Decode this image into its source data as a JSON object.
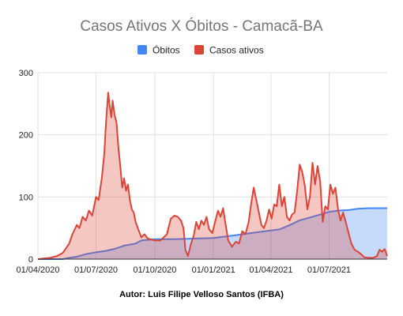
{
  "chart_data": {
    "type": "area",
    "title": "Casos Ativos X Óbitos - Camacã-BA",
    "footer": "Autor: Luis Filipe Velloso Santos (IFBA)",
    "xlabel": "",
    "ylabel": "",
    "ylim": [
      0,
      300
    ],
    "yticks": [
      0,
      100,
      200,
      300
    ],
    "xlim": [
      "2020-04-01",
      "2021-09-30"
    ],
    "xticks": [
      {
        "date": "2020-04-01",
        "label": "01/04/2020"
      },
      {
        "date": "2020-07-01",
        "label": "01/07/2020"
      },
      {
        "date": "2020-10-01",
        "label": "01/10/2020"
      },
      {
        "date": "2021-01-01",
        "label": "01/01/2021"
      },
      {
        "date": "2021-04-01",
        "label": "01/04/2021"
      },
      {
        "date": "2021-07-01",
        "label": "01/07/2021"
      }
    ],
    "grid": true,
    "legend": "top",
    "series": [
      {
        "name": "Óbitos",
        "color": "#4285f4",
        "fill": "#c6dafb",
        "points": [
          [
            "2020-04-01",
            0
          ],
          [
            "2020-05-10",
            0
          ],
          [
            "2020-05-20",
            2
          ],
          [
            "2020-06-01",
            4
          ],
          [
            "2020-06-15",
            8
          ],
          [
            "2020-07-01",
            11
          ],
          [
            "2020-07-15",
            13
          ],
          [
            "2020-08-01",
            17
          ],
          [
            "2020-08-15",
            22
          ],
          [
            "2020-09-01",
            25
          ],
          [
            "2020-09-10",
            30
          ],
          [
            "2020-10-01",
            32
          ],
          [
            "2020-11-01",
            32
          ],
          [
            "2020-12-01",
            33
          ],
          [
            "2021-01-01",
            34
          ],
          [
            "2021-02-01",
            38
          ],
          [
            "2021-03-01",
            42
          ],
          [
            "2021-04-01",
            46
          ],
          [
            "2021-04-15",
            48
          ],
          [
            "2021-05-01",
            55
          ],
          [
            "2021-05-15",
            62
          ],
          [
            "2021-06-01",
            67
          ],
          [
            "2021-06-15",
            71
          ],
          [
            "2021-07-01",
            76
          ],
          [
            "2021-07-15",
            78
          ],
          [
            "2021-08-01",
            79
          ],
          [
            "2021-08-15",
            81
          ],
          [
            "2021-09-01",
            82
          ],
          [
            "2021-09-30",
            82
          ]
        ]
      },
      {
        "name": "Casos ativos",
        "color": "#db4437",
        "fill": "#f6c0bc",
        "points": [
          [
            "2020-04-01",
            0
          ],
          [
            "2020-04-20",
            2
          ],
          [
            "2020-05-01",
            5
          ],
          [
            "2020-05-10",
            10
          ],
          [
            "2020-05-20",
            25
          ],
          [
            "2020-05-25",
            40
          ],
          [
            "2020-06-01",
            55
          ],
          [
            "2020-06-05",
            50
          ],
          [
            "2020-06-10",
            68
          ],
          [
            "2020-06-15",
            62
          ],
          [
            "2020-06-20",
            78
          ],
          [
            "2020-06-25",
            70
          ],
          [
            "2020-07-01",
            100
          ],
          [
            "2020-07-05",
            95
          ],
          [
            "2020-07-10",
            130
          ],
          [
            "2020-07-14",
            170
          ],
          [
            "2020-07-16",
            210
          ],
          [
            "2020-07-18",
            240
          ],
          [
            "2020-07-20",
            268
          ],
          [
            "2020-07-22",
            250
          ],
          [
            "2020-07-25",
            228
          ],
          [
            "2020-07-27",
            255
          ],
          [
            "2020-07-30",
            232
          ],
          [
            "2020-08-02",
            220
          ],
          [
            "2020-08-05",
            180
          ],
          [
            "2020-08-08",
            150
          ],
          [
            "2020-08-11",
            115
          ],
          [
            "2020-08-14",
            130
          ],
          [
            "2020-08-17",
            110
          ],
          [
            "2020-08-20",
            120
          ],
          [
            "2020-08-23",
            95
          ],
          [
            "2020-08-26",
            80
          ],
          [
            "2020-08-29",
            75
          ],
          [
            "2020-09-01",
            60
          ],
          [
            "2020-09-05",
            48
          ],
          [
            "2020-09-10",
            35
          ],
          [
            "2020-09-15",
            40
          ],
          [
            "2020-09-20",
            33
          ],
          [
            "2020-10-01",
            30
          ],
          [
            "2020-10-10",
            30
          ],
          [
            "2020-10-20",
            40
          ],
          [
            "2020-10-26",
            65
          ],
          [
            "2020-11-01",
            70
          ],
          [
            "2020-11-06",
            68
          ],
          [
            "2020-11-11",
            62
          ],
          [
            "2020-11-15",
            50
          ],
          [
            "2020-11-18",
            15
          ],
          [
            "2020-11-22",
            5
          ],
          [
            "2020-11-26",
            22
          ],
          [
            "2020-12-01",
            38
          ],
          [
            "2020-12-05",
            60
          ],
          [
            "2020-12-09",
            48
          ],
          [
            "2020-12-13",
            62
          ],
          [
            "2020-12-17",
            55
          ],
          [
            "2020-12-21",
            68
          ],
          [
            "2020-12-25",
            48
          ],
          [
            "2020-12-30",
            42
          ],
          [
            "2021-01-04",
            62
          ],
          [
            "2021-01-08",
            78
          ],
          [
            "2021-01-12",
            68
          ],
          [
            "2021-01-16",
            82
          ],
          [
            "2021-01-20",
            55
          ],
          [
            "2021-01-24",
            30
          ],
          [
            "2021-01-30",
            20
          ],
          [
            "2021-02-05",
            28
          ],
          [
            "2021-02-10",
            25
          ],
          [
            "2021-02-15",
            45
          ],
          [
            "2021-02-20",
            40
          ],
          [
            "2021-02-25",
            60
          ],
          [
            "2021-03-01",
            90
          ],
          [
            "2021-03-05",
            115
          ],
          [
            "2021-03-09",
            95
          ],
          [
            "2021-03-13",
            75
          ],
          [
            "2021-03-17",
            55
          ],
          [
            "2021-03-21",
            50
          ],
          [
            "2021-03-25",
            62
          ],
          [
            "2021-03-29",
            80
          ],
          [
            "2021-04-02",
            65
          ],
          [
            "2021-04-06",
            88
          ],
          [
            "2021-04-10",
            85
          ],
          [
            "2021-04-14",
            120
          ],
          [
            "2021-04-18",
            85
          ],
          [
            "2021-04-22",
            100
          ],
          [
            "2021-04-26",
            68
          ],
          [
            "2021-04-30",
            62
          ],
          [
            "2021-05-04",
            72
          ],
          [
            "2021-05-08",
            75
          ],
          [
            "2021-05-12",
            110
          ],
          [
            "2021-05-16",
            152
          ],
          [
            "2021-05-20",
            140
          ],
          [
            "2021-05-24",
            118
          ],
          [
            "2021-05-28",
            80
          ],
          [
            "2021-06-01",
            100
          ],
          [
            "2021-06-05",
            155
          ],
          [
            "2021-06-09",
            120
          ],
          [
            "2021-06-13",
            150
          ],
          [
            "2021-06-17",
            125
          ],
          [
            "2021-06-21",
            60
          ],
          [
            "2021-06-25",
            85
          ],
          [
            "2021-06-29",
            80
          ],
          [
            "2021-07-03",
            120
          ],
          [
            "2021-07-07",
            105
          ],
          [
            "2021-07-11",
            115
          ],
          [
            "2021-07-15",
            80
          ],
          [
            "2021-07-19",
            62
          ],
          [
            "2021-07-23",
            75
          ],
          [
            "2021-07-27",
            60
          ],
          [
            "2021-08-01",
            40
          ],
          [
            "2021-08-05",
            25
          ],
          [
            "2021-08-10",
            15
          ],
          [
            "2021-08-15",
            12
          ],
          [
            "2021-08-20",
            8
          ],
          [
            "2021-08-25",
            3
          ],
          [
            "2021-09-01",
            2
          ],
          [
            "2021-09-08",
            2
          ],
          [
            "2021-09-14",
            5
          ],
          [
            "2021-09-18",
            15
          ],
          [
            "2021-09-22",
            12
          ],
          [
            "2021-09-26",
            16
          ],
          [
            "2021-09-30",
            5
          ]
        ]
      }
    ]
  }
}
